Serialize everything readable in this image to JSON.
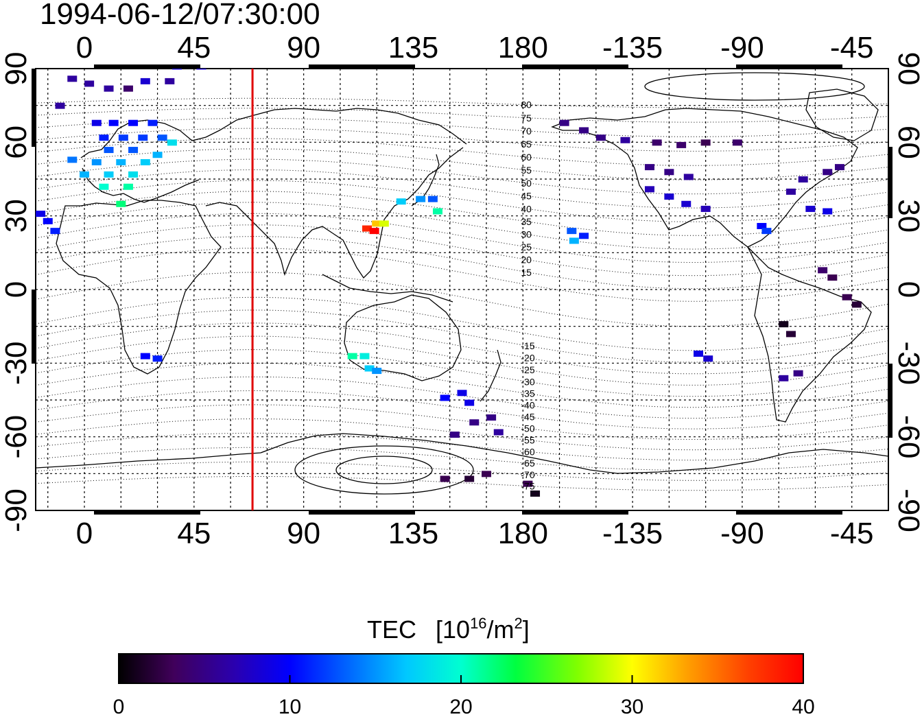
{
  "timestamp": "1994-06-12/07:30:00",
  "map": {
    "projection": "equirectangular",
    "lon_range": [
      -20,
      330
    ],
    "lat_range": [
      -90,
      90
    ],
    "marker_longitude": 69,
    "marker_color": "#e00000",
    "top_lon_ticks": [
      "0",
      "45",
      "90",
      "135",
      "180",
      "-135",
      "-90",
      "-45"
    ],
    "bottom_lon_ticks": [
      "0",
      "45",
      "90",
      "135",
      "180",
      "-135",
      "-90",
      "-45"
    ],
    "lat_ticks": [
      "90",
      "60",
      "30",
      "0",
      "-30",
      "-60",
      "-90"
    ],
    "lon_tick_values": [
      0,
      45,
      90,
      135,
      180,
      225,
      270,
      315
    ],
    "lat_tick_values": [
      90,
      60,
      30,
      0,
      -30,
      -60,
      -90
    ],
    "grid": true,
    "magnetic_contour_labels": [
      "80",
      "75",
      "70",
      "65",
      "60",
      "55",
      "50",
      "45",
      "40",
      "35",
      "30",
      "25",
      "20",
      "15",
      "-15",
      "-20",
      "-25",
      "-30",
      "-35",
      "-40",
      "-45",
      "-50",
      "-55",
      "-60",
      "-65",
      "-70",
      "-75"
    ]
  },
  "colorbar": {
    "title": "TEC",
    "unit_prefix": "[10",
    "unit_exp": "16",
    "unit_mid": "/m",
    "unit_exp2": "2",
    "unit_suffix": "]",
    "min": 0,
    "max": 40,
    "ticks": [
      "0",
      "10",
      "20",
      "30",
      "40"
    ],
    "colors": [
      "#000000",
      "#40005a",
      "#2a00b0",
      "#0000ff",
      "#0060ff",
      "#00c8ff",
      "#00ffd0",
      "#00ff40",
      "#80ff00",
      "#ffff00",
      "#ffa000",
      "#ff4000",
      "#ff0000"
    ]
  },
  "chart_data": {
    "type": "scatter",
    "title": "1994-06-12/07:30:00",
    "quantity": "TEC",
    "units": "10^16/m^2",
    "points": [
      {
        "lon": -10,
        "lat": 75,
        "tec": 6
      },
      {
        "lon": -5,
        "lat": 86,
        "tec": 6
      },
      {
        "lon": 2,
        "lat": 84,
        "tec": 6
      },
      {
        "lon": 10,
        "lat": 82,
        "tec": 6
      },
      {
        "lon": 18,
        "lat": 82,
        "tec": 4
      },
      {
        "lon": 25,
        "lat": 85,
        "tec": 8
      },
      {
        "lon": 35,
        "lat": 85,
        "tec": 6
      },
      {
        "lon": 38,
        "lat": 91,
        "tec": 8
      },
      {
        "lon": 48,
        "lat": 91,
        "tec": 8
      },
      {
        "lon": 5,
        "lat": 68,
        "tec": 9
      },
      {
        "lon": 12,
        "lat": 68,
        "tec": 10
      },
      {
        "lon": 20,
        "lat": 68,
        "tec": 10
      },
      {
        "lon": 28,
        "lat": 68,
        "tec": 11
      },
      {
        "lon": 8,
        "lat": 62,
        "tec": 11
      },
      {
        "lon": 16,
        "lat": 62,
        "tec": 12
      },
      {
        "lon": 24,
        "lat": 62,
        "tec": 12
      },
      {
        "lon": 32,
        "lat": 62,
        "tec": 13
      },
      {
        "lon": 10,
        "lat": 57,
        "tec": 13
      },
      {
        "lon": 20,
        "lat": 57,
        "tec": 13
      },
      {
        "lon": 36,
        "lat": 60,
        "tec": 18
      },
      {
        "lon": -5,
        "lat": 53,
        "tec": 14
      },
      {
        "lon": 5,
        "lat": 52,
        "tec": 15
      },
      {
        "lon": 15,
        "lat": 52,
        "tec": 16
      },
      {
        "lon": 25,
        "lat": 52,
        "tec": 17
      },
      {
        "lon": 30,
        "lat": 55,
        "tec": 16
      },
      {
        "lon": 0,
        "lat": 47,
        "tec": 16
      },
      {
        "lon": 10,
        "lat": 47,
        "tec": 17
      },
      {
        "lon": 20,
        "lat": 47,
        "tec": 18
      },
      {
        "lon": 8,
        "lat": 42,
        "tec": 20
      },
      {
        "lon": 18,
        "lat": 42,
        "tec": 21
      },
      {
        "lon": 15,
        "lat": 35,
        "tec": 22
      },
      {
        "lon": -18,
        "lat": 31,
        "tec": 9
      },
      {
        "lon": -15,
        "lat": 28,
        "tec": 10
      },
      {
        "lon": -12,
        "lat": 24,
        "tec": 11
      },
      {
        "lon": 25,
        "lat": -27,
        "tec": 10
      },
      {
        "lon": 30,
        "lat": -28,
        "tec": 11
      },
      {
        "lon": 130,
        "lat": 36,
        "tec": 17
      },
      {
        "lon": 138,
        "lat": 37,
        "tec": 15
      },
      {
        "lon": 143,
        "lat": 37,
        "tec": 13
      },
      {
        "lon": 145,
        "lat": 32,
        "tec": 21
      },
      {
        "lon": 116,
        "lat": 25,
        "tec": 38
      },
      {
        "lon": 120,
        "lat": 27,
        "tec": 32
      },
      {
        "lon": 123,
        "lat": 27,
        "tec": 29
      },
      {
        "lon": 119,
        "lat": 24,
        "tec": 40
      },
      {
        "lon": 110,
        "lat": -27,
        "tec": 21
      },
      {
        "lon": 115,
        "lat": -27,
        "tec": 19
      },
      {
        "lon": 117,
        "lat": -32,
        "tec": 17
      },
      {
        "lon": 120,
        "lat": -33,
        "tec": 15
      },
      {
        "lon": 148,
        "lat": -44,
        "tec": 10
      },
      {
        "lon": 155,
        "lat": -42,
        "tec": 9
      },
      {
        "lon": 158,
        "lat": -46,
        "tec": 9
      },
      {
        "lon": 160,
        "lat": -54,
        "tec": 5
      },
      {
        "lon": 167,
        "lat": -52,
        "tec": 5
      },
      {
        "lon": 170,
        "lat": -58,
        "tec": 6
      },
      {
        "lon": 152,
        "lat": -59,
        "tec": 5
      },
      {
        "lon": 148,
        "lat": -77,
        "tec": 3
      },
      {
        "lon": 158,
        "lat": -77,
        "tec": 2
      },
      {
        "lon": 165,
        "lat": -75,
        "tec": 3
      },
      {
        "lon": 182,
        "lat": -79,
        "tec": 3
      },
      {
        "lon": 185,
        "lat": -83,
        "tec": 1
      },
      {
        "lon": 200,
        "lat": 24,
        "tec": 13
      },
      {
        "lon": 201,
        "lat": 20,
        "tec": 16
      },
      {
        "lon": 205,
        "lat": 22,
        "tec": 11
      },
      {
        "lon": 197,
        "lat": 68,
        "tec": 5
      },
      {
        "lon": 205,
        "lat": 65,
        "tec": 5
      },
      {
        "lon": 212,
        "lat": 62,
        "tec": 5
      },
      {
        "lon": 222,
        "lat": 61,
        "tec": 6
      },
      {
        "lon": 235,
        "lat": 60,
        "tec": 4
      },
      {
        "lon": 245,
        "lat": 59,
        "tec": 4
      },
      {
        "lon": 255,
        "lat": 60,
        "tec": 3
      },
      {
        "lon": 268,
        "lat": 60,
        "tec": 4
      },
      {
        "lon": 232,
        "lat": 50,
        "tec": 5
      },
      {
        "lon": 240,
        "lat": 48,
        "tec": 5
      },
      {
        "lon": 248,
        "lat": 46,
        "tec": 6
      },
      {
        "lon": 232,
        "lat": 41,
        "tec": 7
      },
      {
        "lon": 240,
        "lat": 38,
        "tec": 8
      },
      {
        "lon": 247,
        "lat": 35,
        "tec": 8
      },
      {
        "lon": 255,
        "lat": 33,
        "tec": 7
      },
      {
        "lon": 290,
        "lat": 40,
        "tec": 6
      },
      {
        "lon": 295,
        "lat": 45,
        "tec": 6
      },
      {
        "lon": 305,
        "lat": 48,
        "tec": 5
      },
      {
        "lon": 310,
        "lat": 50,
        "tec": 5
      },
      {
        "lon": 298,
        "lat": 33,
        "tec": 8
      },
      {
        "lon": 305,
        "lat": 32,
        "tec": 9
      },
      {
        "lon": 278,
        "lat": 26,
        "tec": 10
      },
      {
        "lon": 280,
        "lat": 24,
        "tec": 12
      },
      {
        "lon": 303,
        "lat": 8,
        "tec": 4
      },
      {
        "lon": 307,
        "lat": 5,
        "tec": 3
      },
      {
        "lon": 313,
        "lat": -3,
        "tec": 3
      },
      {
        "lon": 317,
        "lat": -6,
        "tec": 2
      },
      {
        "lon": 287,
        "lat": -14,
        "tec": 1
      },
      {
        "lon": 290,
        "lat": -18,
        "tec": 2
      },
      {
        "lon": 293,
        "lat": -34,
        "tec": 5
      },
      {
        "lon": 287,
        "lat": -36,
        "tec": 6
      },
      {
        "lon": 252,
        "lat": -26,
        "tec": 9
      },
      {
        "lon": 256,
        "lat": -28,
        "tec": 8
      }
    ]
  }
}
